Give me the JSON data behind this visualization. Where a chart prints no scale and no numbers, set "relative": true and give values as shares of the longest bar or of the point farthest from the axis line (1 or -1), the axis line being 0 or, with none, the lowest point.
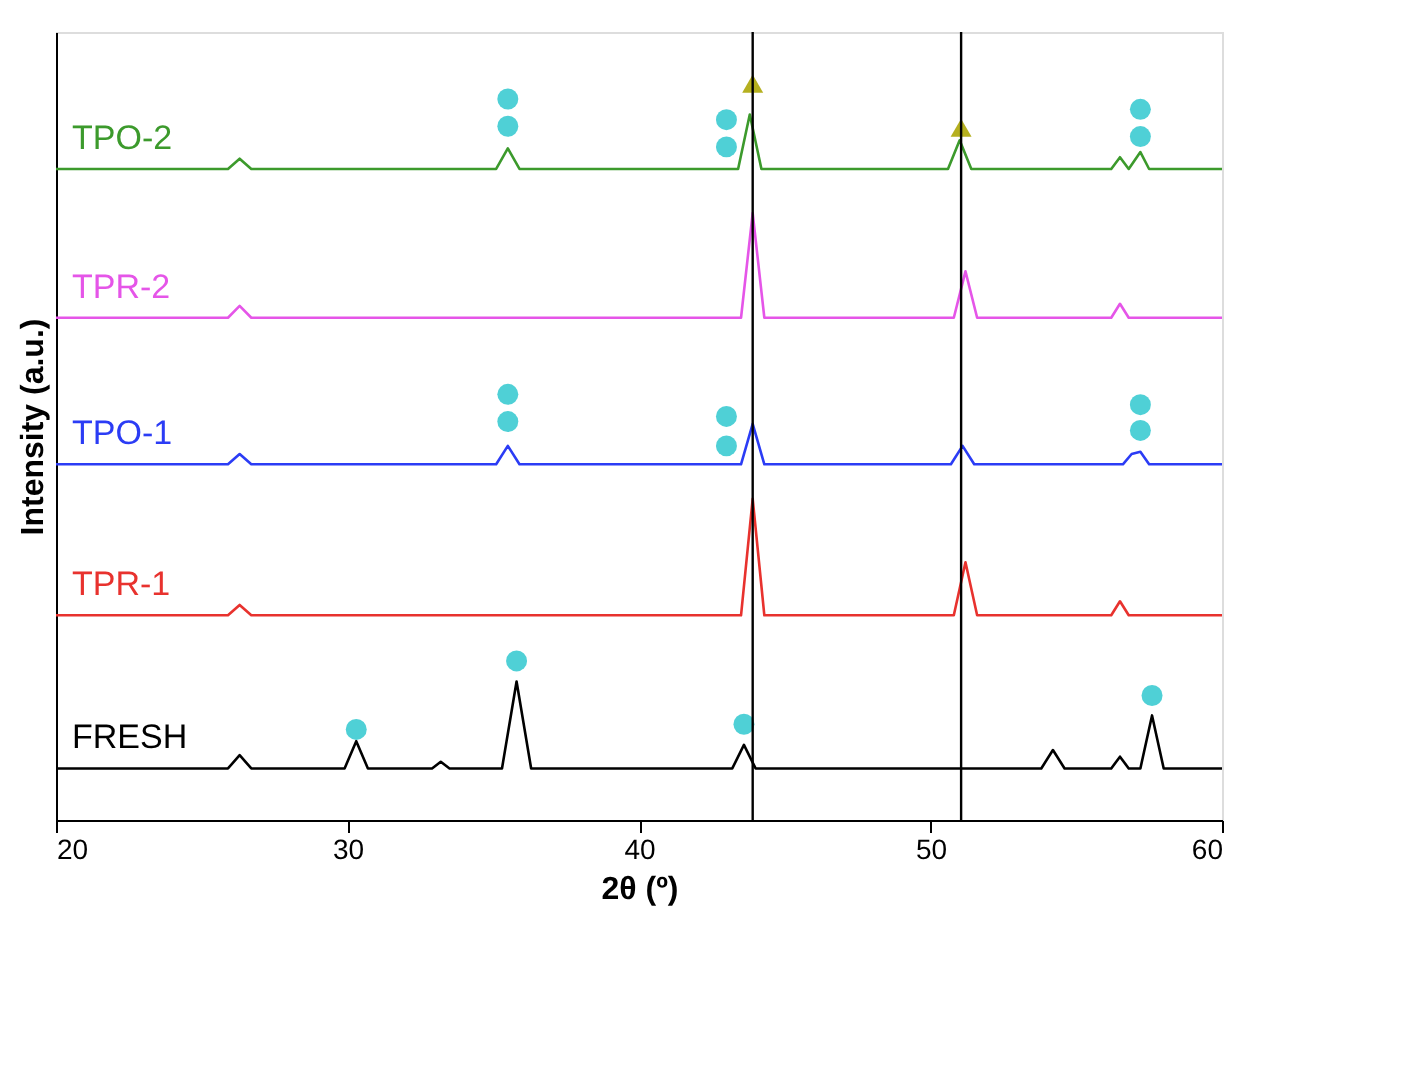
{
  "chart_data": {
    "type": "line",
    "relative": true,
    "xlabel": "2θ (º)",
    "ylabel": "Intensity (a.u.)",
    "xlim": [
      20,
      60
    ],
    "xticks": [
      20,
      30,
      40,
      50,
      60
    ],
    "tick_labels": "x",
    "grid": false,
    "marker": "none",
    "line_style": "solid",
    "series": [
      {
        "name": "FRESH",
        "color": "#000000",
        "x": [
          20,
          25.9,
          26.3,
          26.7,
          29.9,
          30.3,
          30.7,
          32.9,
          33.2,
          33.5,
          35.3,
          35.8,
          36.3,
          43.2,
          43.6,
          44.0,
          53.8,
          54.2,
          54.6,
          56.2,
          56.5,
          56.8,
          57.2,
          57.6,
          58.0,
          60
        ],
        "values": [
          0.07,
          0.07,
          0.088,
          0.07,
          0.07,
          0.107,
          0.07,
          0.07,
          0.079,
          0.07,
          0.07,
          0.188,
          0.07,
          0.07,
          0.102,
          0.07,
          0.07,
          0.095,
          0.07,
          0.07,
          0.086,
          0.07,
          0.07,
          0.142,
          0.07,
          0.07
        ]
      },
      {
        "name": "TPR-1",
        "color": "#e8322e",
        "x": [
          20,
          25.9,
          26.3,
          26.7,
          43.5,
          43.9,
          44.3,
          50.8,
          51.2,
          51.6,
          56.2,
          56.5,
          56.8,
          60
        ],
        "values": [
          0.278,
          0.278,
          0.292,
          0.278,
          0.278,
          0.436,
          0.278,
          0.278,
          0.35,
          0.278,
          0.278,
          0.297,
          0.278,
          0.278
        ]
      },
      {
        "name": "TPO-1",
        "color": "#2b3cf5",
        "x": [
          20,
          25.9,
          26.3,
          26.7,
          35.1,
          35.5,
          35.9,
          43.5,
          43.9,
          44.3,
          50.7,
          51.1,
          51.5,
          56.6,
          56.9,
          57.2,
          57.5,
          60
        ],
        "values": [
          0.483,
          0.483,
          0.497,
          0.483,
          0.483,
          0.508,
          0.483,
          0.483,
          0.538,
          0.483,
          0.483,
          0.508,
          0.483,
          0.483,
          0.497,
          0.5,
          0.483,
          0.483
        ]
      },
      {
        "name": "TPR-2",
        "color": "#e555e8",
        "x": [
          20,
          25.9,
          26.3,
          26.7,
          43.5,
          43.9,
          44.3,
          50.8,
          51.2,
          51.6,
          56.2,
          56.5,
          56.8,
          60
        ],
        "values": [
          0.682,
          0.682,
          0.698,
          0.682,
          0.682,
          0.824,
          0.682,
          0.682,
          0.745,
          0.682,
          0.682,
          0.701,
          0.682,
          0.682
        ]
      },
      {
        "name": "TPO-2",
        "color": "#3c9a2c",
        "x": [
          20,
          25.9,
          26.3,
          26.7,
          35.1,
          35.5,
          35.9,
          43.4,
          43.8,
          44.2,
          50.6,
          51.0,
          51.4,
          56.2,
          56.5,
          56.8,
          57.2,
          57.5,
          60
        ],
        "values": [
          0.884,
          0.884,
          0.898,
          0.884,
          0.884,
          0.912,
          0.884,
          0.884,
          0.958,
          0.884,
          0.884,
          0.923,
          0.884,
          0.884,
          0.9,
          0.884,
          0.907,
          0.884,
          0.884
        ]
      },
      {
        "type": "scatter",
        "marker": "triangle",
        "color": "#b5b020",
        "x": [
          43.9,
          51.05
        ],
        "values": [
          1.0,
          0.94
        ]
      },
      {
        "type": "scatter",
        "marker": "circle",
        "color": "#4fd0d6",
        "x": [
          30.3,
          35.8,
          43.6,
          57.6,
          35.5,
          43.0,
          57.2,
          35.5,
          43.0,
          57.2,
          35.5,
          43.0,
          57.2,
          35.5,
          43.0,
          57.2
        ],
        "values": [
          0.123,
          0.216,
          0.13,
          0.169,
          0.541,
          0.508,
          0.529,
          0.942,
          0.914,
          0.928,
          0.578,
          0.548,
          0.564,
          0.979,
          0.951,
          0.965
        ]
      }
    ],
    "ref_lines": [
      {
        "axis": "x",
        "value": 43.9,
        "color": "#000000"
      },
      {
        "axis": "x",
        "value": 51.05,
        "color": "#000000"
      }
    ]
  }
}
